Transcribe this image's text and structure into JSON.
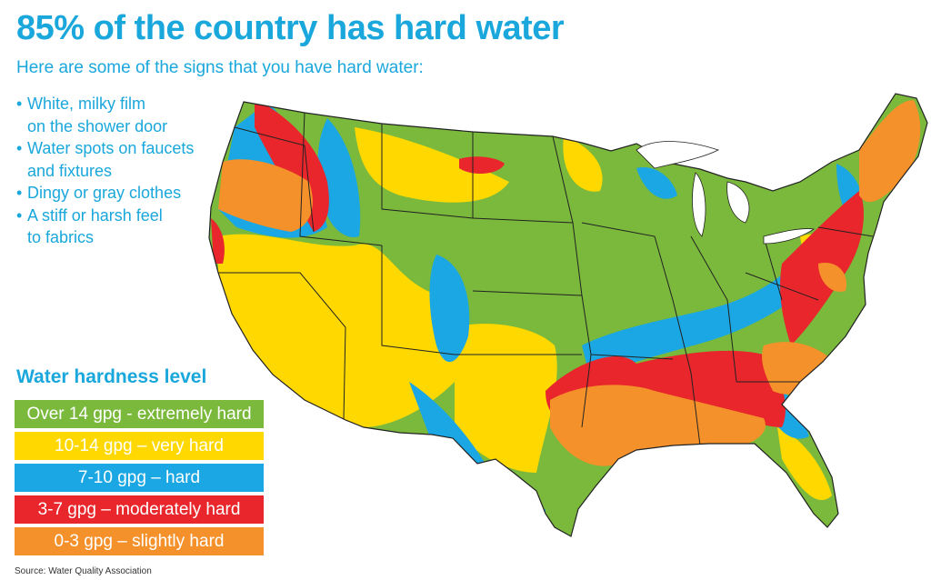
{
  "title": "85% of the country has hard water",
  "subtitle": "Here are some of the signs that you have hard water:",
  "signs": [
    [
      "White, milky film",
      "on the shower door"
    ],
    [
      "Water spots on faucets",
      "and fixtures"
    ],
    [
      "Dingy or gray clothes"
    ],
    [
      "A stiff or harsh feel",
      "to fabrics"
    ]
  ],
  "legend": {
    "title": "Water hardness level",
    "items": [
      {
        "label": "Over 14 gpg - extremely hard",
        "color": "#7ab93c"
      },
      {
        "label": "10-14 gpg – very hard",
        "color": "#ffd800"
      },
      {
        "label": "7-10 gpg – hard",
        "color": "#1aa7e3"
      },
      {
        "label": "3-7 gpg – moderately hard",
        "color": "#e8262b"
      },
      {
        "label": "0-3 gpg – slightly hard",
        "color": "#f5912a"
      }
    ]
  },
  "source": "Source: Water Quality Association",
  "map_colors": {
    "extremely_hard": "#7ab93c",
    "very_hard": "#ffd800",
    "hard": "#1aa7e3",
    "moderately_hard": "#e8262b",
    "slightly_hard": "#f5912a",
    "state_borders": "#222222"
  }
}
